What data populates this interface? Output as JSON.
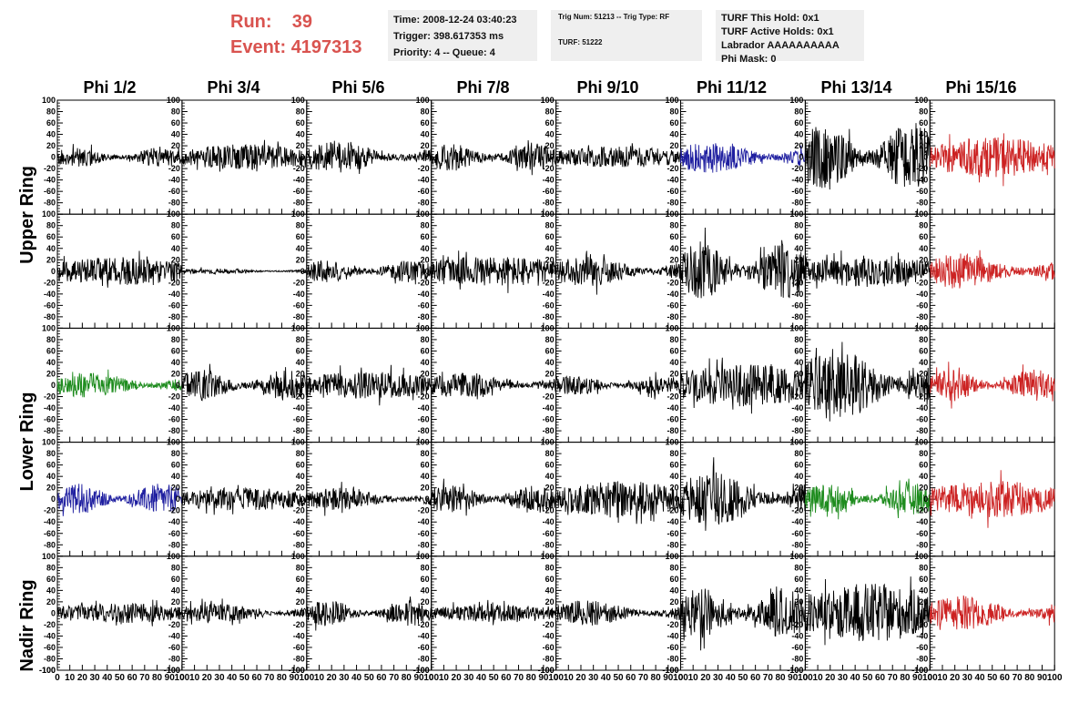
{
  "run": {
    "run_label": "Run:",
    "run_value": "39",
    "event_label": "Event:",
    "event_value": "4197313"
  },
  "info1": {
    "time": "Time: 2008-12-24 03:40:23",
    "trigger": "Trigger: 398.617353 ms",
    "priority": "Priority: 4 -- Queue: 4"
  },
  "info2": {
    "trig": "Trig Num: 51213 -- Trig Type: RF",
    "turf": "TURF: 51222"
  },
  "info3": {
    "hold": "TURF This Hold: 0x1",
    "active": "TURF Active Holds: 0x1",
    "labrador": "Labrador AAAAAAAAAA",
    "phimask": "Phi Mask: 0"
  },
  "phi_headers": [
    "Phi 1/2",
    "Phi 3/4",
    "Phi 5/6",
    "Phi 7/8",
    "Phi 9/10",
    "Phi 11/12",
    "Phi 13/14",
    "Phi 15/16"
  ],
  "ring_labels": {
    "upper": "Upper Ring",
    "lower": "Lower Ring",
    "nadir": "Nadir Ring"
  },
  "colors": {
    "black": "#000000",
    "blue": "#1f1fa0",
    "red": "#cc2222",
    "green": "#1e8c1e",
    "header_red": "#d9534f"
  },
  "chart_data": {
    "type": "line",
    "rows": 5,
    "cols": 8,
    "xlim": [
      0,
      100
    ],
    "ylim": [
      -100,
      100
    ],
    "y_ticks": [
      100,
      80,
      60,
      40,
      20,
      0,
      -20,
      -40,
      -60,
      -80,
      -100
    ],
    "y_tick_labels": [
      "100",
      "80",
      "60",
      "40",
      "20",
      "0",
      "-20",
      "-40",
      "-60",
      "-80",
      "-100"
    ],
    "x_ticks": [
      0,
      10,
      20,
      30,
      40,
      50,
      60,
      70,
      80,
      90,
      100
    ],
    "x_tick_labels": [
      "0",
      "10",
      "20",
      "30",
      "40",
      "50",
      "60",
      "70",
      "80",
      "90",
      "100"
    ],
    "panels": [
      [
        {
          "color": "black",
          "amp": 14,
          "seed": 11
        },
        {
          "color": "black",
          "amp": 18,
          "seed": 12
        },
        {
          "color": "black",
          "amp": 22,
          "seed": 13
        },
        {
          "color": "black",
          "amp": 20,
          "seed": 14
        },
        {
          "color": "black",
          "amp": 15,
          "seed": 15
        },
        {
          "color": "blue",
          "amp": 24,
          "seed": 16
        },
        {
          "color": "black",
          "amp": 48,
          "seed": 17
        },
        {
          "color": "red",
          "amp": 28,
          "seed": 18
        }
      ],
      [
        {
          "color": "black",
          "amp": 20,
          "seed": 21
        },
        {
          "color": "black",
          "amp": 4,
          "seed": 22
        },
        {
          "color": "black",
          "amp": 16,
          "seed": 23
        },
        {
          "color": "black",
          "amp": 22,
          "seed": 24
        },
        {
          "color": "black",
          "amp": 22,
          "seed": 25
        },
        {
          "color": "black",
          "amp": 42,
          "seed": 26
        },
        {
          "color": "black",
          "amp": 22,
          "seed": 27
        },
        {
          "color": "red",
          "amp": 26,
          "seed": 28
        }
      ],
      [
        {
          "color": "green",
          "amp": 18,
          "seed": 31
        },
        {
          "color": "black",
          "amp": 22,
          "seed": 32
        },
        {
          "color": "black",
          "amp": 20,
          "seed": 33
        },
        {
          "color": "black",
          "amp": 18,
          "seed": 34
        },
        {
          "color": "black",
          "amp": 14,
          "seed": 35
        },
        {
          "color": "black",
          "amp": 30,
          "seed": 36
        },
        {
          "color": "black",
          "amp": 52,
          "seed": 37
        },
        {
          "color": "red",
          "amp": 22,
          "seed": 38
        }
      ],
      [
        {
          "color": "blue",
          "amp": 22,
          "seed": 41
        },
        {
          "color": "black",
          "amp": 16,
          "seed": 42
        },
        {
          "color": "black",
          "amp": 16,
          "seed": 43
        },
        {
          "color": "black",
          "amp": 20,
          "seed": 44
        },
        {
          "color": "black",
          "amp": 26,
          "seed": 45
        },
        {
          "color": "black",
          "amp": 38,
          "seed": 46
        },
        {
          "color": "green",
          "amp": 22,
          "seed": 47
        },
        {
          "color": "red",
          "amp": 26,
          "seed": 48
        }
      ],
      [
        {
          "color": "black",
          "amp": 14,
          "seed": 51
        },
        {
          "color": "black",
          "amp": 14,
          "seed": 52
        },
        {
          "color": "black",
          "amp": 18,
          "seed": 53
        },
        {
          "color": "black",
          "amp": 12,
          "seed": 54
        },
        {
          "color": "black",
          "amp": 18,
          "seed": 55
        },
        {
          "color": "black",
          "amp": 36,
          "seed": 56
        },
        {
          "color": "black",
          "amp": 42,
          "seed": 57
        },
        {
          "color": "red",
          "amp": 24,
          "seed": 58
        }
      ]
    ]
  }
}
